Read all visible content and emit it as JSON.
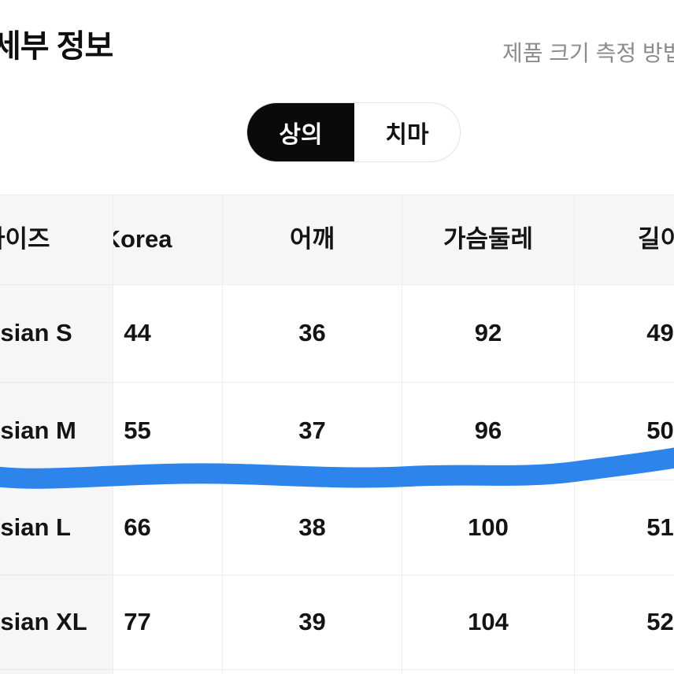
{
  "page": {
    "title": "세부 정보",
    "size_guide_link": "제품 크기 측정 방법"
  },
  "toggle": {
    "options": [
      {
        "label": "상의",
        "selected": true
      },
      {
        "label": "치마",
        "selected": false
      }
    ]
  },
  "size_table": {
    "columns": [
      "사이즈",
      "Korea",
      "어깨",
      "가슴둘레",
      "길이"
    ],
    "rows": [
      {
        "size": "Asian S",
        "korea": "44",
        "shoulder": "36",
        "chest": "92",
        "length": "49"
      },
      {
        "size": "Asian M",
        "korea": "55",
        "shoulder": "37",
        "chest": "96",
        "length": "50"
      },
      {
        "size": "Asian L",
        "korea": "66",
        "shoulder": "38",
        "chest": "100",
        "length": "51"
      },
      {
        "size": "Asian XL",
        "korea": "77",
        "shoulder": "39",
        "chest": "104",
        "length": "52"
      }
    ]
  },
  "annotation": {
    "type": "hand-drawn-highlight-stroke",
    "color": "#2d85eb"
  },
  "colors": {
    "toggle_selected_bg": "#0a0a0a",
    "table_header_bg": "#f6f6f7",
    "border": "#ededed",
    "subtitle_gray": "#8b8b8b",
    "text": "#141414"
  }
}
